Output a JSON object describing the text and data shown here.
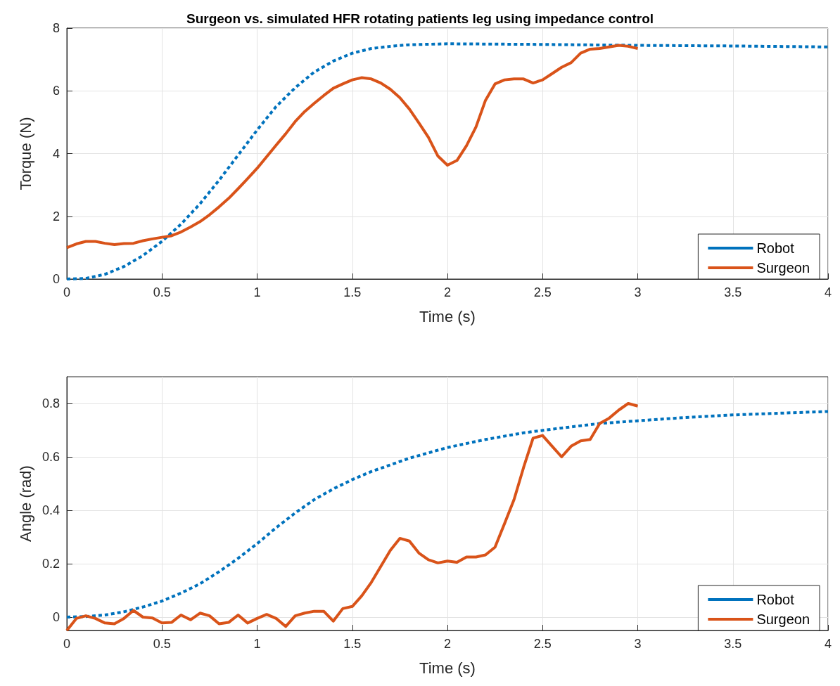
{
  "chart_data": [
    {
      "type": "line",
      "title": "Surgeon vs. simulated HFR rotating patients leg using impedance control",
      "xlabel": "Time (s)",
      "ylabel": "Torque (N)",
      "xlim": [
        0,
        4
      ],
      "xticks": [
        0,
        0.5,
        1,
        1.5,
        2,
        2.5,
        3,
        3.5,
        4
      ],
      "ylim": [
        0,
        8
      ],
      "yticks": [
        0,
        2,
        4,
        6,
        8
      ],
      "grid": true,
      "legend": "bottom right",
      "marker": "none",
      "series": [
        {
          "name": "Robot",
          "color": "#0072bd",
          "line_style": "dashed",
          "x": [
            0,
            0.1,
            0.2,
            0.3,
            0.4,
            0.5,
            0.6,
            0.7,
            0.8,
            0.9,
            1.0,
            1.1,
            1.2,
            1.3,
            1.4,
            1.5,
            1.6,
            1.7,
            1.8,
            2.0,
            2.5,
            3.0,
            3.5,
            4.0
          ],
          "values": [
            0,
            0.02,
            0.15,
            0.4,
            0.75,
            1.2,
            1.75,
            2.4,
            3.15,
            3.95,
            4.75,
            5.5,
            6.1,
            6.6,
            6.95,
            7.2,
            7.35,
            7.42,
            7.47,
            7.5,
            7.48,
            7.45,
            7.43,
            7.4
          ]
        },
        {
          "name": "Surgeon",
          "color": "#d95319",
          "line_style": "solid",
          "x": [
            0,
            0.05,
            0.1,
            0.15,
            0.2,
            0.25,
            0.3,
            0.35,
            0.4,
            0.45,
            0.5,
            0.55,
            0.6,
            0.65,
            0.7,
            0.75,
            0.8,
            0.85,
            0.9,
            0.95,
            1.0,
            1.05,
            1.1,
            1.15,
            1.2,
            1.25,
            1.3,
            1.35,
            1.4,
            1.45,
            1.5,
            1.55,
            1.6,
            1.65,
            1.7,
            1.75,
            1.8,
            1.85,
            1.9,
            1.95,
            2.0,
            2.05,
            2.1,
            2.15,
            2.2,
            2.25,
            2.3,
            2.35,
            2.4,
            2.45,
            2.5,
            2.55,
            2.6,
            2.65,
            2.7,
            2.75,
            2.8,
            2.85,
            2.9,
            2.95,
            3.0
          ],
          "values": [
            1.0,
            1.12,
            1.2,
            1.2,
            1.14,
            1.1,
            1.13,
            1.14,
            1.22,
            1.28,
            1.33,
            1.38,
            1.5,
            1.66,
            1.83,
            2.05,
            2.3,
            2.57,
            2.88,
            3.2,
            3.53,
            3.9,
            4.27,
            4.63,
            5.02,
            5.34,
            5.6,
            5.85,
            6.08,
            6.22,
            6.35,
            6.42,
            6.38,
            6.25,
            6.05,
            5.78,
            5.42,
            4.98,
            4.52,
            3.92,
            3.63,
            3.78,
            4.25,
            4.85,
            5.7,
            6.22,
            6.35,
            6.38,
            6.38,
            6.25,
            6.35,
            6.55,
            6.75,
            6.9,
            7.2,
            7.33,
            7.35,
            7.4,
            7.45,
            7.42,
            7.35
          ]
        }
      ]
    },
    {
      "type": "line",
      "xlabel": "Time (s)",
      "ylabel": "Angle (rad)",
      "xlim": [
        0,
        4
      ],
      "xticks": [
        0,
        0.5,
        1,
        1.5,
        2,
        2.5,
        3,
        3.5,
        4
      ],
      "ylim": [
        -0.05,
        0.9
      ],
      "yticks": [
        0,
        0.2,
        0.4,
        0.6,
        0.8
      ],
      "grid": true,
      "legend": "bottom right",
      "marker": "none",
      "series": [
        {
          "name": "Robot",
          "color": "#0072bd",
          "line_style": "dashed",
          "x": [
            0,
            0.1,
            0.2,
            0.3,
            0.4,
            0.5,
            0.6,
            0.7,
            0.8,
            0.9,
            1.0,
            1.1,
            1.2,
            1.3,
            1.4,
            1.5,
            1.6,
            1.7,
            1.8,
            1.9,
            2.0,
            2.2,
            2.4,
            2.6,
            2.8,
            3.0,
            3.2,
            3.5,
            4.0
          ],
          "values": [
            0,
            0.002,
            0.008,
            0.02,
            0.038,
            0.06,
            0.09,
            0.125,
            0.17,
            0.22,
            0.275,
            0.335,
            0.39,
            0.44,
            0.48,
            0.515,
            0.545,
            0.57,
            0.595,
            0.615,
            0.635,
            0.665,
            0.69,
            0.708,
            0.725,
            0.735,
            0.745,
            0.757,
            0.77
          ]
        },
        {
          "name": "Surgeon",
          "color": "#d95319",
          "line_style": "solid",
          "x": [
            0,
            0.05,
            0.1,
            0.15,
            0.2,
            0.25,
            0.3,
            0.35,
            0.4,
            0.45,
            0.5,
            0.55,
            0.6,
            0.65,
            0.7,
            0.75,
            0.8,
            0.85,
            0.9,
            0.95,
            1.0,
            1.05,
            1.1,
            1.15,
            1.2,
            1.25,
            1.3,
            1.35,
            1.4,
            1.45,
            1.5,
            1.55,
            1.6,
            1.65,
            1.7,
            1.75,
            1.8,
            1.85,
            1.9,
            1.95,
            2.0,
            2.05,
            2.1,
            2.15,
            2.2,
            2.25,
            2.3,
            2.35,
            2.4,
            2.45,
            2.5,
            2.55,
            2.6,
            2.65,
            2.7,
            2.75,
            2.8,
            2.85,
            2.9,
            2.95,
            3.0
          ],
          "values": [
            -0.05,
            -0.005,
            0.005,
            -0.005,
            -0.022,
            -0.025,
            -0.005,
            0.025,
            0,
            -0.003,
            -0.022,
            -0.02,
            0.008,
            -0.01,
            0.015,
            0.005,
            -0.025,
            -0.02,
            0.008,
            -0.022,
            -0.005,
            0.01,
            -0.005,
            -0.035,
            0.005,
            0.015,
            0.022,
            0.022,
            -0.015,
            0.032,
            0.04,
            0.08,
            0.13,
            0.19,
            0.25,
            0.295,
            0.285,
            0.24,
            0.215,
            0.203,
            0.21,
            0.205,
            0.225,
            0.225,
            0.233,
            0.262,
            0.35,
            0.44,
            0.56,
            0.67,
            0.68,
            0.64,
            0.6,
            0.64,
            0.66,
            0.665,
            0.725,
            0.745,
            0.775,
            0.8,
            0.79
          ]
        }
      ]
    }
  ]
}
